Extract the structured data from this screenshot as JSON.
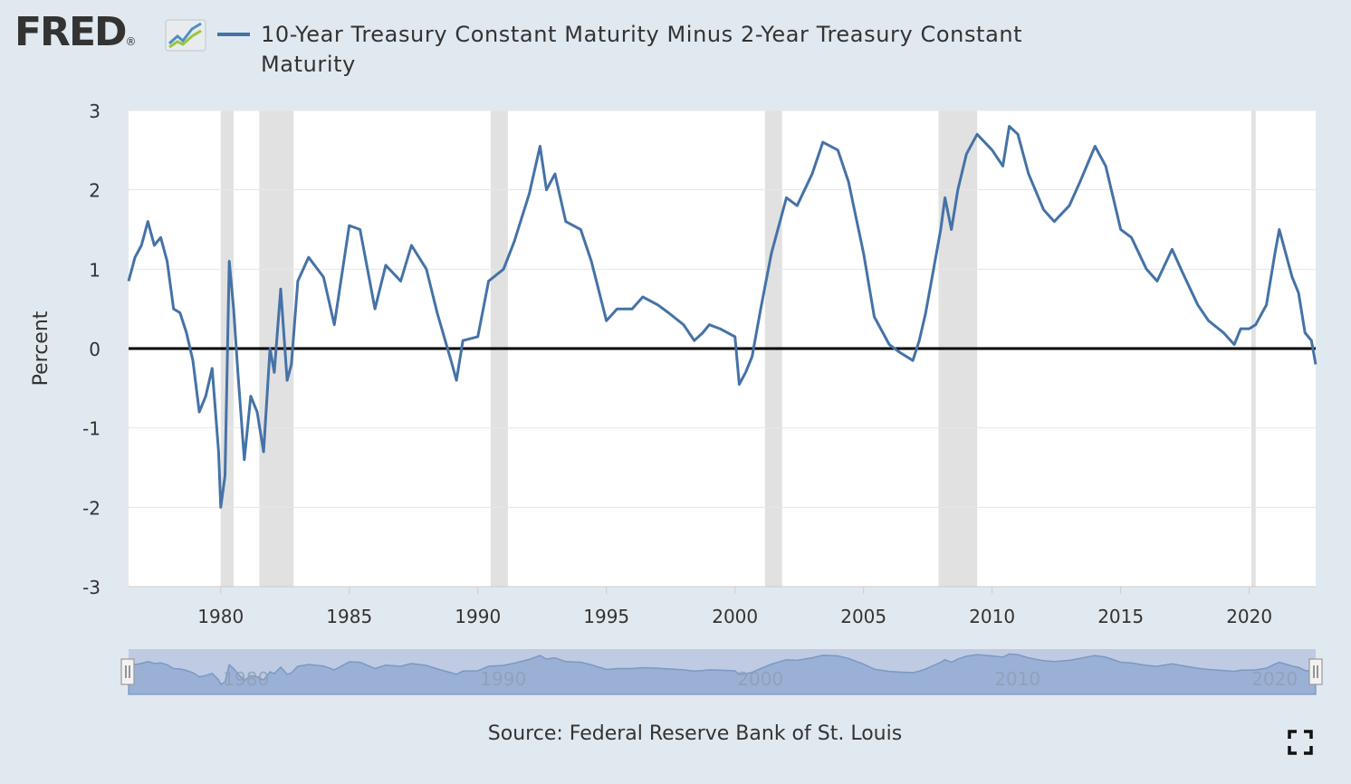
{
  "header": {
    "logo_text": "FRED",
    "logo_registered": "®"
  },
  "source_text": "Source: Federal Reserve Bank of St. Louis",
  "icons": {
    "logo_graph": "fred-logo-graph-icon",
    "fullscreen": "fullscreen-expand-icon"
  },
  "colors": {
    "background": "#e1e9f0",
    "plot_background": "#ffffff",
    "series_line": "#4572a7",
    "recession_band": "#e1e1e1",
    "zero_line": "#000000",
    "navigator_fill": "#b8c6e0"
  },
  "chart_data": {
    "type": "line",
    "title": "",
    "xlabel": "",
    "ylabel": "Percent",
    "ylim": [
      -3,
      3
    ],
    "xlim": [
      "1976-06",
      "2022-08"
    ],
    "yticks": [
      "3",
      "2",
      "1",
      "0",
      "-1",
      "-2",
      "-3"
    ],
    "xticks": [
      "1980",
      "1985",
      "1990",
      "1995",
      "2000",
      "2005",
      "2010",
      "2015",
      "2020"
    ],
    "navigator_labels": [
      "1980",
      "1990",
      "2000",
      "2010",
      "2020"
    ],
    "grid": true,
    "legend_position": "top",
    "reference_line": 0,
    "recessions": [
      [
        "1980-01",
        "1980-07"
      ],
      [
        "1981-07",
        "1982-11"
      ],
      [
        "1990-07",
        "1991-03"
      ],
      [
        "2001-03",
        "2001-11"
      ],
      [
        "2007-12",
        "2009-06"
      ],
      [
        "2020-02",
        "2020-04"
      ]
    ],
    "series": [
      {
        "name": "10-Year Treasury Constant Maturity Minus 2-Year Treasury Constant Maturity",
        "x": [
          "1976-06",
          "1976-09",
          "1976-12",
          "1977-03",
          "1977-06",
          "1977-09",
          "1977-12",
          "1978-03",
          "1978-06",
          "1978-09",
          "1978-12",
          "1979-03",
          "1979-06",
          "1979-09",
          "1979-12",
          "1980-01",
          "1980-03",
          "1980-05",
          "1980-07",
          "1980-09",
          "1980-12",
          "1981-03",
          "1981-06",
          "1981-09",
          "1981-12",
          "1982-02",
          "1982-05",
          "1982-08",
          "1982-10",
          "1983-01",
          "1983-06",
          "1984-01",
          "1984-06",
          "1985-01",
          "1985-06",
          "1986-01",
          "1986-06",
          "1987-01",
          "1987-06",
          "1988-01",
          "1988-06",
          "1989-01",
          "1989-03",
          "1989-06",
          "1990-01",
          "1990-06",
          "1991-01",
          "1991-06",
          "1992-01",
          "1992-06",
          "1992-09",
          "1993-01",
          "1993-06",
          "1994-01",
          "1994-06",
          "1995-01",
          "1995-06",
          "1996-01",
          "1996-06",
          "1997-01",
          "1997-06",
          "1998-01",
          "1998-06",
          "1998-10",
          "1999-01",
          "1999-06",
          "2000-01",
          "2000-03",
          "2000-06",
          "2000-09",
          "2001-01",
          "2001-06",
          "2002-01",
          "2002-06",
          "2003-01",
          "2003-06",
          "2004-01",
          "2004-06",
          "2005-01",
          "2005-06",
          "2006-01",
          "2006-06",
          "2006-12",
          "2007-03",
          "2007-06",
          "2008-01",
          "2008-03",
          "2008-06",
          "2008-09",
          "2009-01",
          "2009-06",
          "2010-01",
          "2010-06",
          "2010-09",
          "2011-01",
          "2011-06",
          "2012-01",
          "2012-06",
          "2013-01",
          "2013-06",
          "2014-01",
          "2014-06",
          "2015-01",
          "2015-06",
          "2016-01",
          "2016-06",
          "2017-01",
          "2017-06",
          "2018-01",
          "2018-06",
          "2019-01",
          "2019-06",
          "2019-09",
          "2020-01",
          "2020-04",
          "2020-09",
          "2021-01",
          "2021-03",
          "2021-06",
          "2021-09",
          "2021-12",
          "2022-03",
          "2022-06",
          "2022-08"
        ],
        "values": [
          0.85,
          1.15,
          1.3,
          1.6,
          1.3,
          1.4,
          1.1,
          0.5,
          0.45,
          0.2,
          -0.15,
          -0.8,
          -0.6,
          -0.25,
          -1.3,
          -2.0,
          -1.6,
          1.1,
          0.5,
          -0.3,
          -1.4,
          -0.6,
          -0.8,
          -1.3,
          0.0,
          -0.3,
          0.75,
          -0.4,
          -0.2,
          0.85,
          1.15,
          0.9,
          0.3,
          1.55,
          1.5,
          0.5,
          1.05,
          0.85,
          1.3,
          1.0,
          0.45,
          -0.2,
          -0.4,
          0.1,
          0.15,
          0.85,
          1.0,
          1.35,
          1.95,
          2.55,
          2.0,
          2.2,
          1.6,
          1.5,
          1.1,
          0.35,
          0.5,
          0.5,
          0.65,
          0.55,
          0.45,
          0.3,
          0.1,
          0.2,
          0.3,
          0.25,
          0.15,
          -0.45,
          -0.3,
          -0.1,
          0.5,
          1.2,
          1.9,
          1.8,
          2.2,
          2.6,
          2.5,
          2.1,
          1.2,
          0.4,
          0.05,
          -0.05,
          -0.15,
          0.1,
          0.45,
          1.5,
          1.9,
          1.5,
          2.0,
          2.45,
          2.7,
          2.5,
          2.3,
          2.8,
          2.7,
          2.2,
          1.75,
          1.6,
          1.8,
          2.1,
          2.55,
          2.3,
          1.5,
          1.4,
          1.0,
          0.85,
          1.25,
          0.95,
          0.55,
          0.35,
          0.2,
          0.05,
          0.25,
          0.25,
          0.3,
          0.55,
          1.2,
          1.5,
          1.2,
          0.9,
          0.7,
          0.2,
          0.1,
          -0.2
        ]
      }
    ]
  }
}
